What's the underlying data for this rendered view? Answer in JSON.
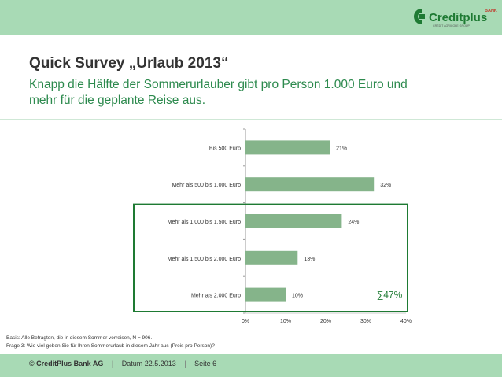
{
  "header": {
    "logo_text": "Creditplus",
    "logo_superscript": "BANK",
    "logo_tagline": "CRÉDIT AGRICOLE GROUP"
  },
  "title": "Quick Survey „Urlaub 2013“",
  "subtitle": "Knapp die Hälfte der Sommerurlauber gibt pro Person 1.000 Euro und mehr für die geplante Reise aus.",
  "chart_data": {
    "type": "bar",
    "orientation": "horizontal",
    "categories": [
      "Bis 500 Euro",
      "Mehr als 500 bis 1.000 Euro",
      "Mehr als 1.000 bis 1.500 Euro",
      "Mehr als 1.500 bis 2.000 Euro",
      "Mehr als 2.000 Euro"
    ],
    "values": [
      21,
      32,
      24,
      13,
      10
    ],
    "value_labels": [
      "21%",
      "32%",
      "24%",
      "13%",
      "10%"
    ],
    "xlim": [
      0,
      40
    ],
    "xticks": [
      "0%",
      "10%",
      "20%",
      "30%",
      "40%"
    ],
    "highlight": {
      "categories": [
        "Mehr als 1.000 bis 1.500 Euro",
        "Mehr als 1.500 bis 2.000 Euro",
        "Mehr als 2.000 Euro"
      ],
      "label": "∑47%"
    },
    "bar_color": "#85b48a",
    "highlight_color": "#1e7a33"
  },
  "notes": {
    "line1": "Basis: Alle Befragten, die in diesem Sommer verreisen, N = 906.",
    "line2": "Frage 3: Wie viel geben Sie für Ihren Sommerurlaub in diesem Jahr aus (Preis pro Person)?"
  },
  "footer": {
    "company": "© CreditPlus Bank AG",
    "date": "Datum 22.5.2013",
    "page": "Seite 6"
  }
}
